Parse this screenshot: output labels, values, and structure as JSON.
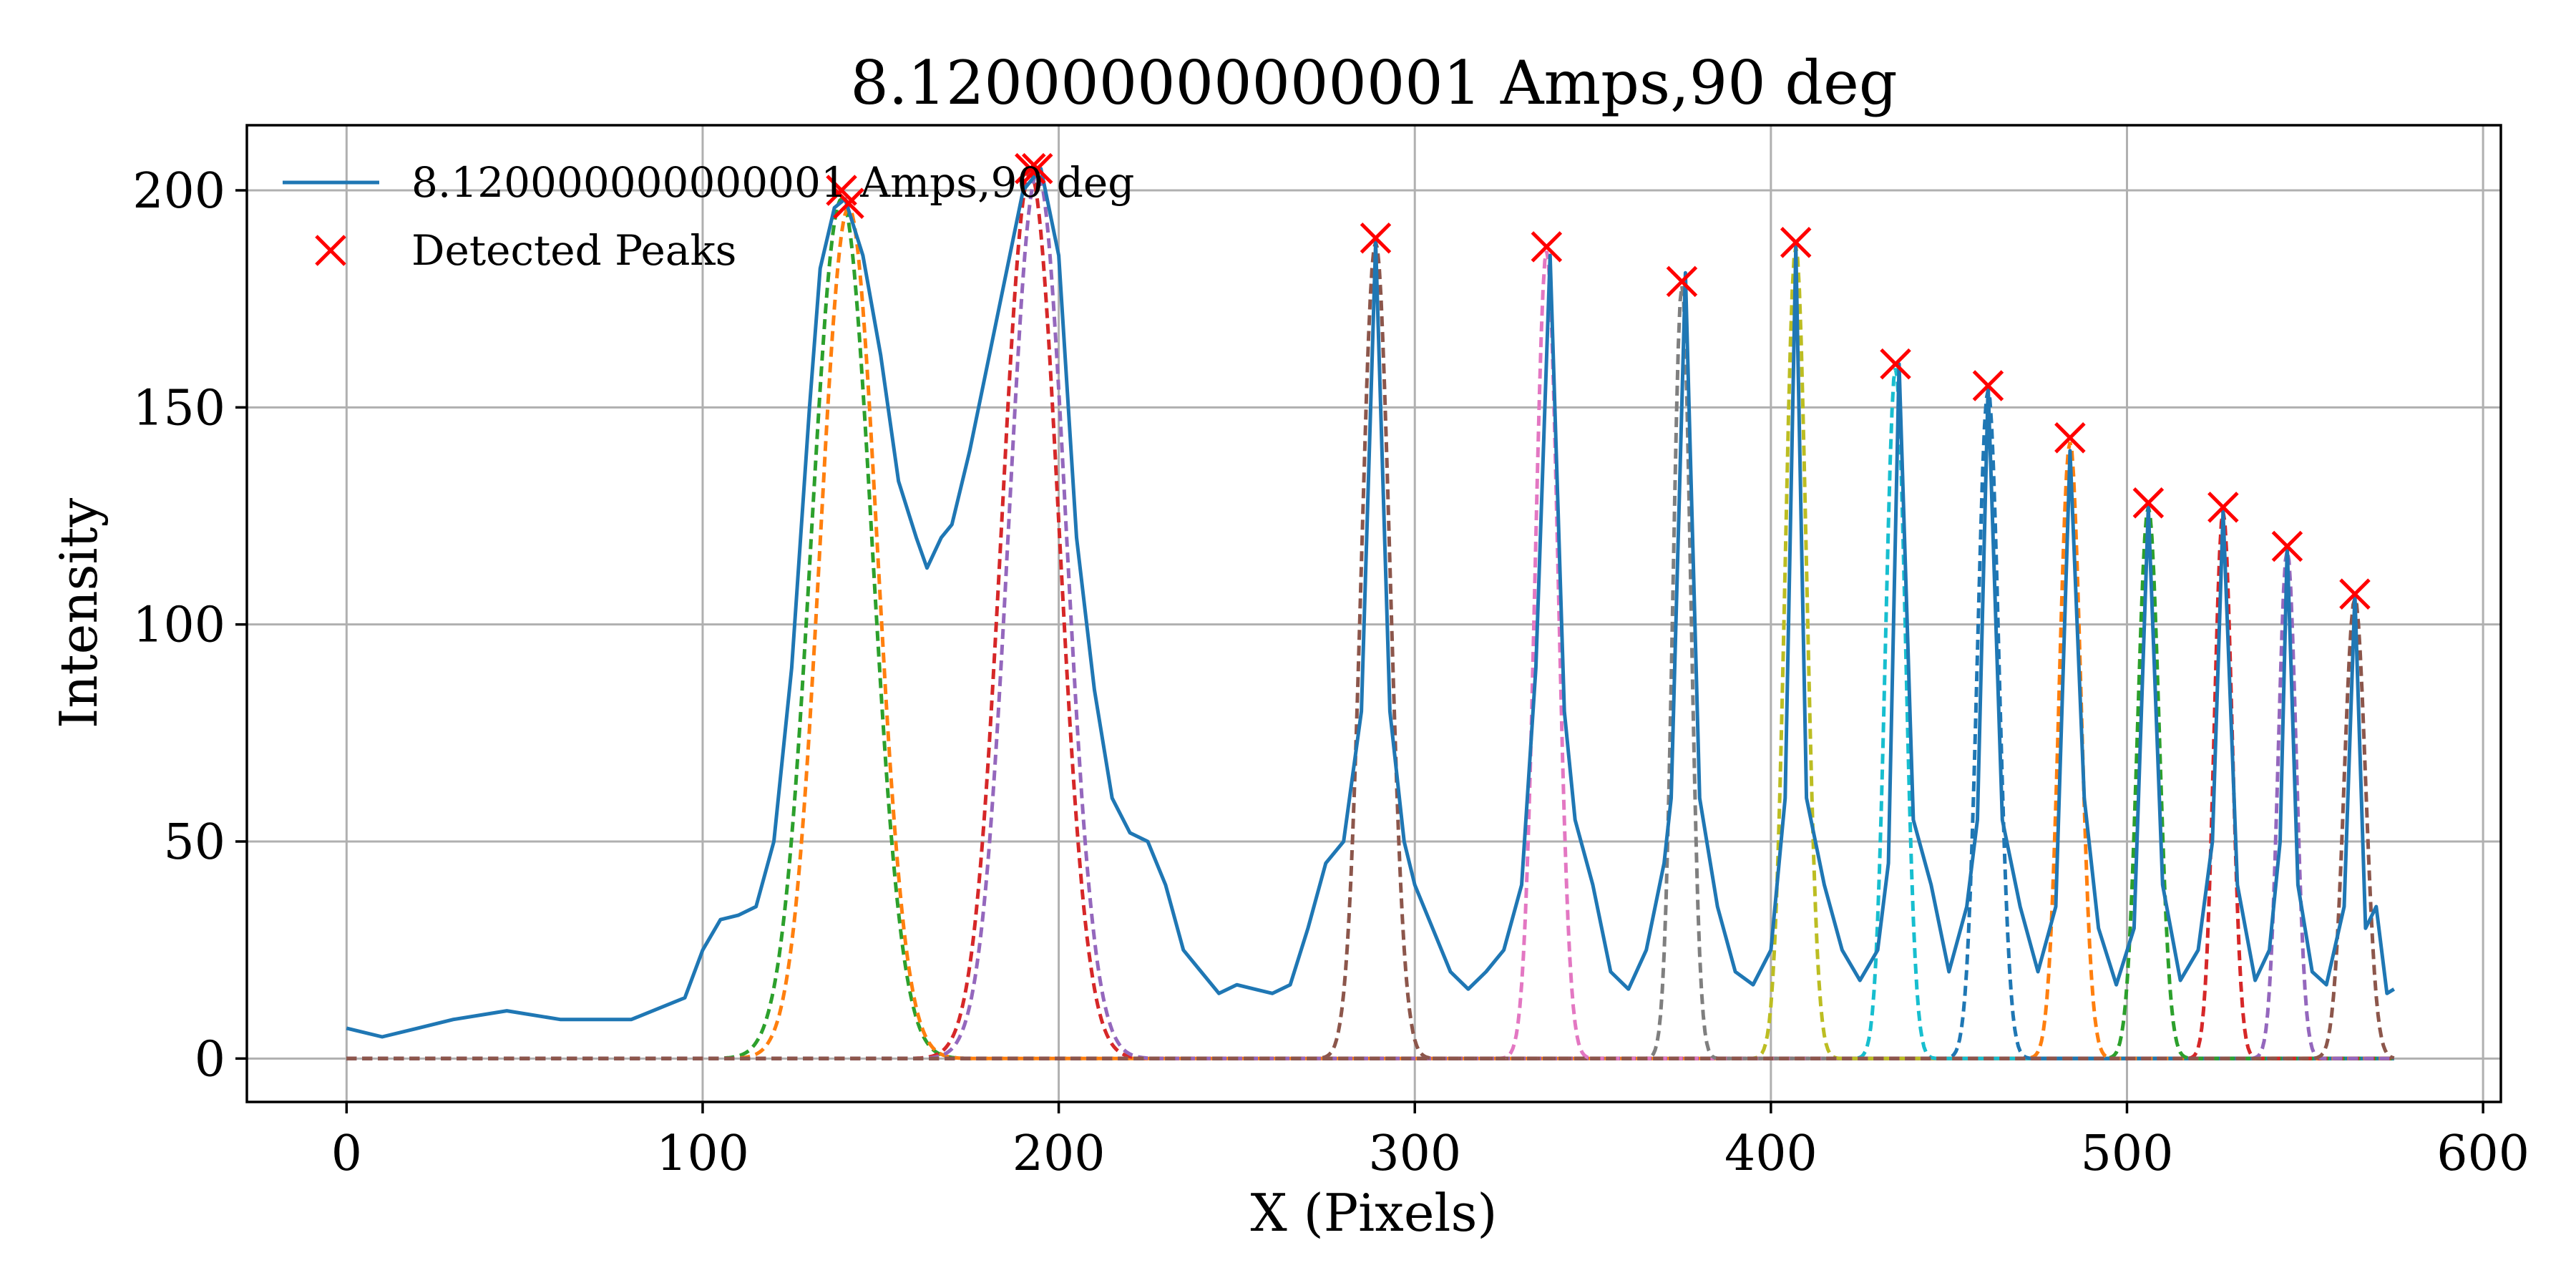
{
  "chart_data": {
    "type": "line",
    "title": "8.120000000000001 Amps,90 deg",
    "xlabel": "X (Pixels)",
    "ylabel": "Intensity",
    "xlim": [
      -28,
      605
    ],
    "ylim": [
      -10,
      215
    ],
    "xticks": [
      0,
      100,
      200,
      300,
      400,
      500,
      600
    ],
    "yticks": [
      0,
      50,
      100,
      150,
      200
    ],
    "grid": true,
    "legend": {
      "placement": "top-left",
      "entries": [
        "8.120000000000001 Amps,90 deg",
        "Detected Peaks"
      ]
    },
    "colors": {
      "series": "#1f77b4",
      "peaks": "#ff0000"
    },
    "series": [
      {
        "name": "8.120000000000001 Amps,90 deg",
        "x": [
          0,
          10,
          20,
          30,
          45,
          60,
          80,
          95,
          100,
          105,
          110,
          115,
          120,
          125,
          130,
          133,
          137,
          140,
          145,
          150,
          155,
          160,
          163,
          167,
          170,
          175,
          180,
          185,
          190,
          195,
          200,
          205,
          210,
          215,
          220,
          225,
          230,
          235,
          240,
          245,
          250,
          255,
          260,
          265,
          270,
          275,
          280,
          285,
          289,
          293,
          297,
          300,
          305,
          310,
          315,
          320,
          325,
          330,
          334,
          338,
          342,
          345,
          350,
          355,
          360,
          365,
          370,
          372,
          376,
          380,
          385,
          390,
          395,
          400,
          404,
          407,
          410,
          415,
          420,
          425,
          430,
          433,
          436,
          440,
          445,
          450,
          455,
          458,
          461,
          465,
          470,
          475,
          480,
          484,
          488,
          492,
          497,
          502,
          506,
          510,
          515,
          520,
          524,
          527,
          531,
          536,
          540,
          543,
          545,
          548,
          552,
          556,
          561,
          564,
          567,
          570,
          573,
          575
        ],
        "y": [
          7,
          5,
          7,
          9,
          11,
          9,
          9,
          14,
          25,
          32,
          33,
          35,
          50,
          90,
          150,
          182,
          196,
          198,
          185,
          162,
          133,
          120,
          113,
          120,
          123,
          140,
          160,
          180,
          200,
          205,
          185,
          120,
          85,
          60,
          52,
          50,
          40,
          25,
          20,
          15,
          17,
          16,
          15,
          17,
          30,
          45,
          50,
          80,
          188,
          80,
          50,
          40,
          30,
          20,
          16,
          20,
          25,
          40,
          90,
          185,
          80,
          55,
          40,
          20,
          16,
          25,
          45,
          60,
          181,
          60,
          35,
          20,
          17,
          25,
          60,
          187,
          60,
          40,
          25,
          18,
          25,
          45,
          160,
          55,
          40,
          20,
          35,
          55,
          155,
          55,
          35,
          20,
          35,
          140,
          60,
          30,
          17,
          30,
          127,
          40,
          18,
          25,
          50,
          126,
          40,
          18,
          25,
          50,
          118,
          40,
          20,
          17,
          35,
          107,
          30,
          35,
          15,
          16
        ]
      }
    ],
    "peaks": {
      "name": "Detected Peaks",
      "x": [
        139,
        141,
        192,
        194,
        289,
        337,
        375,
        407,
        435,
        461,
        484,
        506,
        527,
        545,
        564
      ],
      "y": [
        200,
        197,
        205,
        205,
        189,
        187,
        179,
        188,
        160,
        155,
        143,
        128,
        127,
        118,
        107
      ]
    },
    "fits": [
      {
        "mu": 139,
        "amp": 198,
        "sigma": 8.5,
        "color": "#2ca02c"
      },
      {
        "mu": 141,
        "amp": 196,
        "sigma": 8.0,
        "color": "#ff7f0e"
      },
      {
        "mu": 192,
        "amp": 204,
        "sigma": 8.0,
        "color": "#d62728"
      },
      {
        "mu": 194,
        "amp": 204,
        "sigma": 8.0,
        "color": "#9467bd"
      },
      {
        "mu": 289,
        "amp": 188,
        "sigma": 4.0,
        "color": "#8c564b"
      },
      {
        "mu": 337,
        "amp": 186,
        "sigma": 3.2,
        "color": "#e377c2"
      },
      {
        "mu": 375,
        "amp": 178,
        "sigma": 2.5,
        "color": "#7f7f7f"
      },
      {
        "mu": 407,
        "amp": 187,
        "sigma": 3.0,
        "color": "#bcbd22"
      },
      {
        "mu": 435,
        "amp": 159,
        "sigma": 2.8,
        "color": "#17becf"
      },
      {
        "mu": 461,
        "amp": 154,
        "sigma": 3.0,
        "color": "#1f77b4"
      },
      {
        "mu": 484,
        "amp": 142,
        "sigma": 3.0,
        "color": "#ff7f0e"
      },
      {
        "mu": 506,
        "amp": 127,
        "sigma": 3.0,
        "color": "#2ca02c"
      },
      {
        "mu": 527,
        "amp": 126,
        "sigma": 2.5,
        "color": "#d62728"
      },
      {
        "mu": 545,
        "amp": 117,
        "sigma": 2.5,
        "color": "#9467bd"
      },
      {
        "mu": 564,
        "amp": 106,
        "sigma": 3.0,
        "color": "#8c564b"
      }
    ]
  }
}
